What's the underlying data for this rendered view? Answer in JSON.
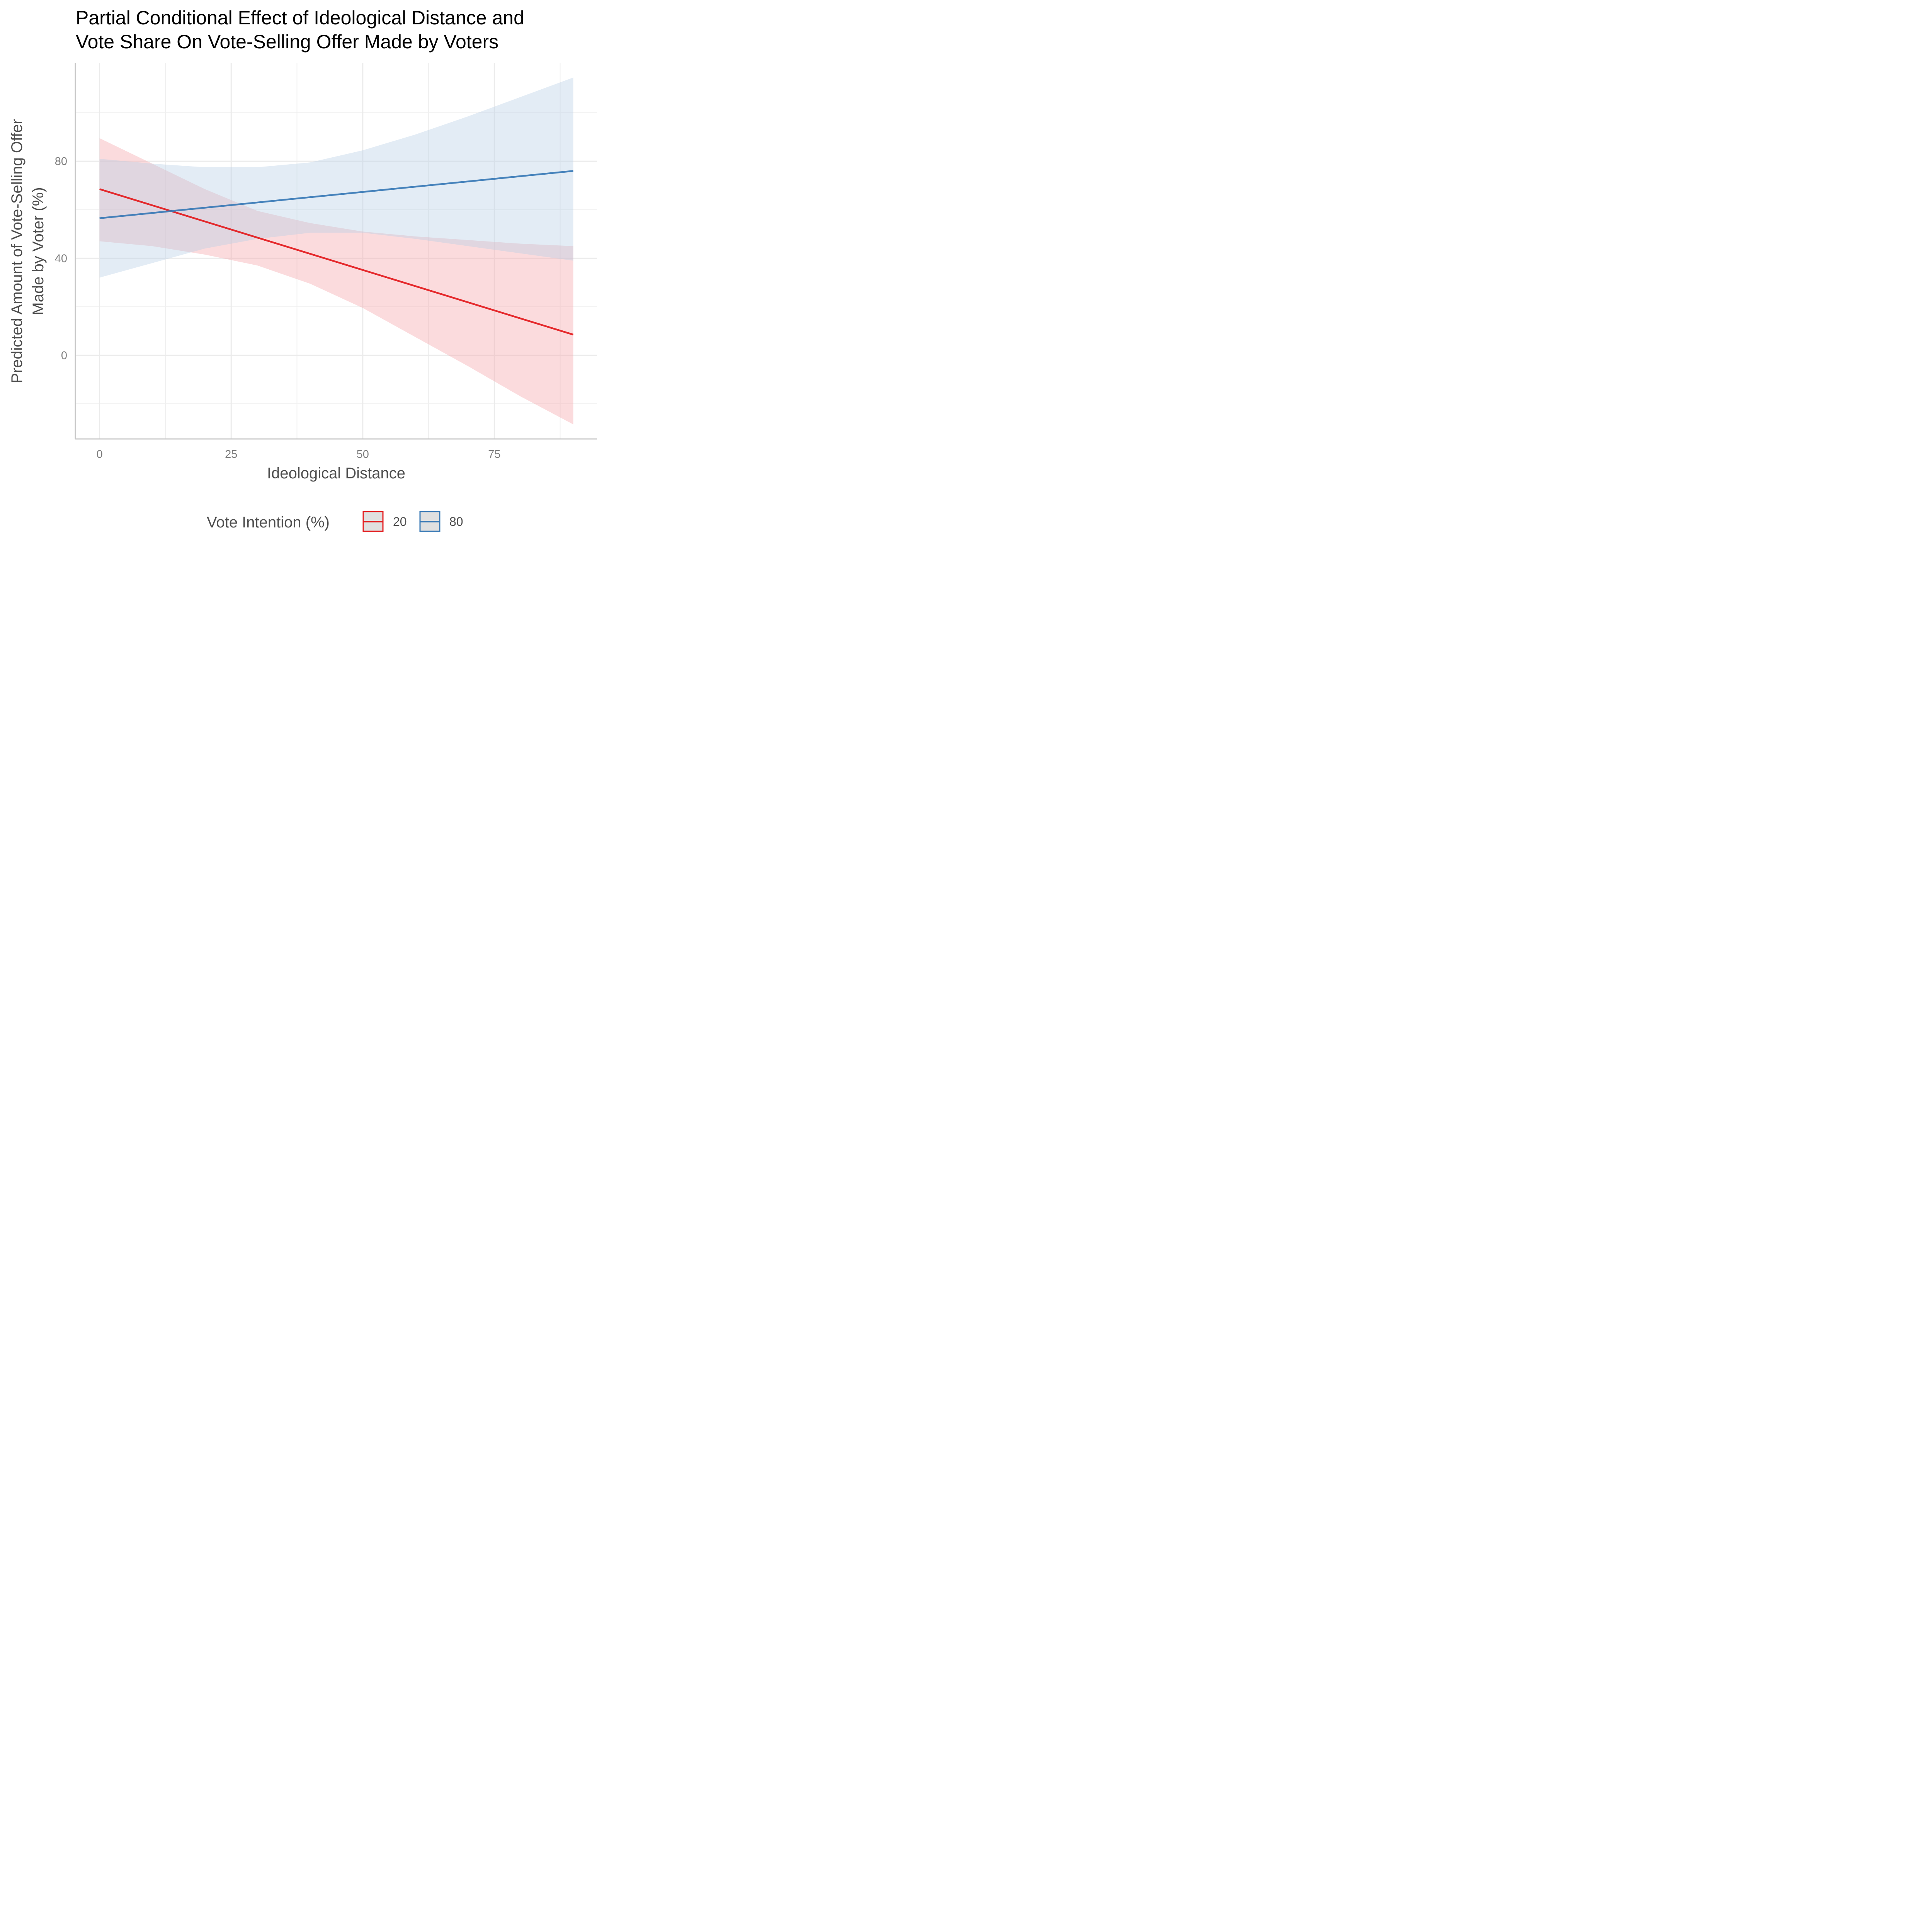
{
  "chart_data": {
    "type": "line",
    "title": [
      "Partial Conditional Effect of Ideological Distance and",
      "Vote Share On Vote-Selling Offer Made by Voters"
    ],
    "xlabel": "Ideological Distance",
    "ylabel": [
      "Predicted Amount of Vote-Selling Offer",
      "Made by Voter (%)"
    ],
    "xlim": [
      -4.6,
      94.5
    ],
    "ylim": [
      -34.5,
      120.5
    ],
    "x_ticks": [
      0,
      25,
      50,
      75
    ],
    "x_tick_labels": [
      "0",
      "25",
      "50",
      "75"
    ],
    "x_minor_ticks": [
      12.5,
      37.5,
      62.5,
      87.5
    ],
    "y_ticks": [
      0,
      40,
      80
    ],
    "y_tick_labels": [
      "0",
      "40",
      "80"
    ],
    "y_minor_ticks": [
      -20,
      20,
      60,
      100
    ],
    "grid": true,
    "legend": {
      "title": "Vote Intention (%)",
      "position": "bottom"
    },
    "series": [
      {
        "name": "20",
        "color": "#e31a1c",
        "ribbon_color": "#f4a6aa",
        "x": [
          0,
          90
        ],
        "y": [
          68.5,
          8.5
        ],
        "ribbon": {
          "x": [
            0,
            10,
            20,
            30,
            40,
            50,
            60,
            70,
            80,
            90
          ],
          "lower": [
            47,
            45,
            41.5,
            37,
            29.5,
            19.5,
            7.5,
            -4.5,
            -17,
            -28.5
          ],
          "upper": [
            89.5,
            79,
            68.5,
            59.5,
            54.5,
            51,
            49,
            47.5,
            46,
            45
          ]
        }
      },
      {
        "name": "80",
        "color": "#3778b5",
        "ribbon_color": "#b8d0e6",
        "x": [
          0,
          90
        ],
        "y": [
          56.5,
          76
        ],
        "ribbon": {
          "x": [
            0,
            10,
            20,
            30,
            40,
            50,
            60,
            70,
            80,
            90
          ],
          "lower": [
            32,
            38,
            44,
            48,
            50.5,
            50.5,
            48,
            45,
            42,
            39
          ],
          "upper": [
            81,
            79,
            77.5,
            77.5,
            79.5,
            84.5,
            91,
            98.5,
            106.5,
            114.5
          ]
        }
      }
    ]
  }
}
